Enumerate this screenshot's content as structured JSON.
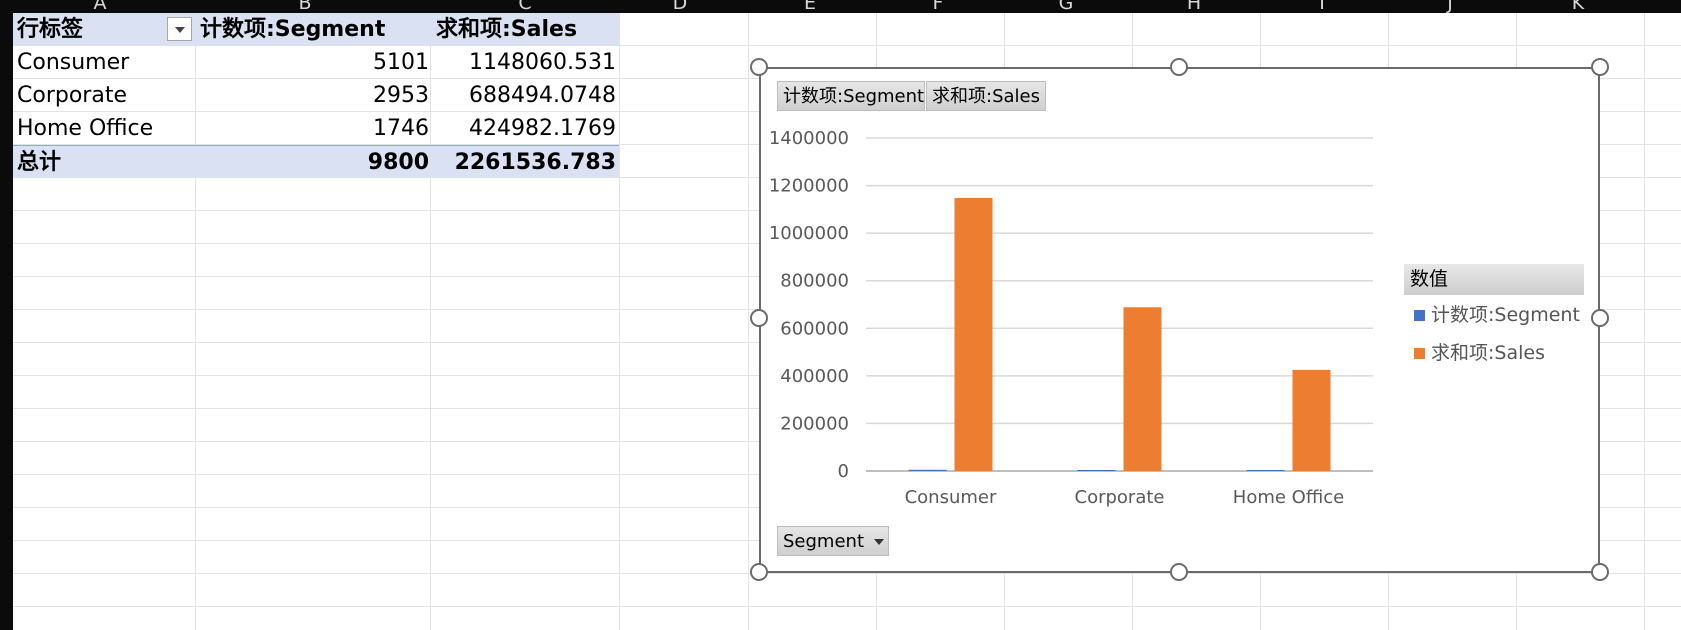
{
  "sheet": {
    "columns": [
      "A",
      "B",
      "C",
      "D",
      "E",
      "F",
      "G",
      "H",
      "I",
      "J",
      "K"
    ]
  },
  "pivot": {
    "header": {
      "row_label": "行标签",
      "count_label": "计数项:Segment",
      "sum_label": "求和项:Sales"
    },
    "rows": [
      {
        "label": "Consumer",
        "count": "5101",
        "sum": "1148060.531"
      },
      {
        "label": "Corporate",
        "count": "2953",
        "sum": "688494.0748"
      },
      {
        "label": "Home Office",
        "count": "1746",
        "sum": "424982.1769"
      }
    ],
    "total": {
      "label": "总计",
      "count": "9800",
      "sum": "2261536.783"
    }
  },
  "chart": {
    "value_buttons": [
      "计数项:Segment",
      "求和项:Sales"
    ],
    "axis_button": "Segment",
    "legend_title": "数值"
  },
  "chart_data": {
    "type": "bar",
    "categories": [
      "Consumer",
      "Corporate",
      "Home Office"
    ],
    "series": [
      {
        "name": "计数项:Segment",
        "color": "#4472c4",
        "values": [
          5101,
          2953,
          1746
        ]
      },
      {
        "name": "求和项:Sales",
        "color": "#ed7d31",
        "values": [
          1148060.531,
          688494.0748,
          424982.1769
        ]
      }
    ],
    "ylim": [
      0,
      1400000
    ],
    "yticks": [
      "0",
      "200000",
      "400000",
      "600000",
      "800000",
      "1000000",
      "1200000",
      "1400000"
    ],
    "grid": true,
    "legend_position": "right"
  }
}
